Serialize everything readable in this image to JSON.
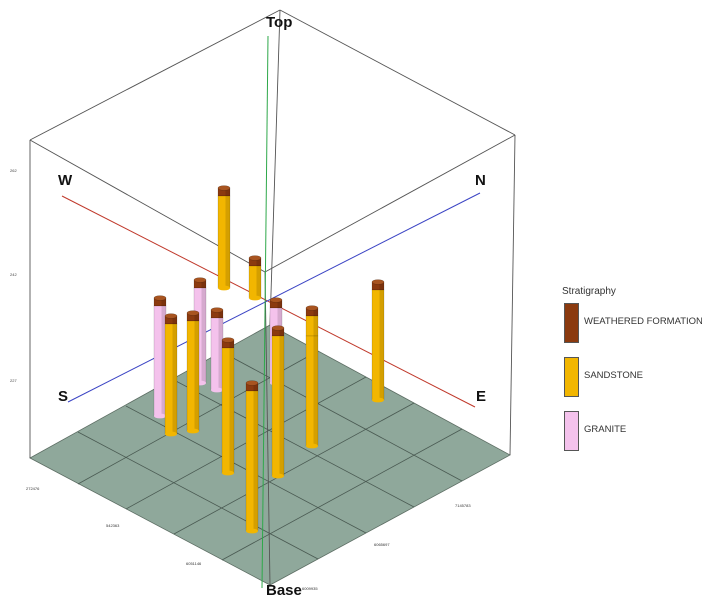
{
  "directions": {
    "top": "Top",
    "base": "Base",
    "west": "W",
    "north": "N",
    "south": "S",
    "east": "E"
  },
  "legend": {
    "title": "Stratigraphy",
    "items": [
      {
        "label": "WEATHERED FORMATION",
        "color": "#8b3a0f"
      },
      {
        "label": "SANDSTONE",
        "color": "#f2b600"
      },
      {
        "label": "GRANITE",
        "color": "#f4c2ec"
      }
    ]
  },
  "colors": {
    "box_lines": "#555555",
    "floor": "#8fa89b",
    "ew_axis": "#c0392b",
    "ns_axis": "#3b44c4",
    "vertical_axis": "#2ea84a"
  }
}
